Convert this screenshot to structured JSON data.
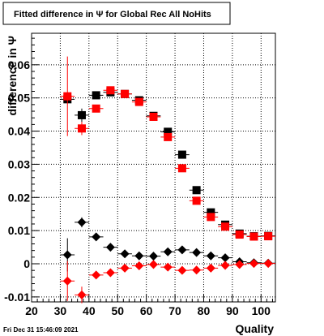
{
  "title_text": "Fitted difference in  Ψ  for Global Rec All NoHits",
  "timestamp": "Fri Dec 31 15:46:09 2021",
  "chart_data": {
    "type": "scatter",
    "title": "Fitted difference in  Ψ  for Global Rec All NoHits",
    "xlabel": "Quality",
    "ylabel": "difference in  Ψ",
    "xlim": [
      20,
      105
    ],
    "ylim": [
      -0.0115,
      0.0695
    ],
    "x_ticks": [
      20,
      30,
      40,
      50,
      60,
      70,
      80,
      90,
      100
    ],
    "y_ticks": [
      -0.01,
      0,
      0.01,
      0.02,
      0.03,
      0.04,
      0.05,
      0.06
    ],
    "y_tick_labels": [
      "-0.01",
      "0",
      "0.01",
      "0.02",
      "0.03",
      "0.04",
      "0.05",
      "0.06"
    ],
    "grid": true,
    "x_bin_half_width": 2.5,
    "series": [
      {
        "color": "#000000",
        "marker": "square",
        "points": [
          {
            "x": 32.5,
            "y": 0.0496,
            "err": 0.0
          },
          {
            "x": 37.5,
            "y": 0.0448,
            "err": 0.002
          },
          {
            "x": 42.5,
            "y": 0.0508,
            "err": 0.0006
          },
          {
            "x": 47.5,
            "y": 0.0517,
            "err": 0.0003
          },
          {
            "x": 52.5,
            "y": 0.0512,
            "err": 0.0002
          },
          {
            "x": 57.5,
            "y": 0.0493,
            "err": 0.0002
          },
          {
            "x": 62.5,
            "y": 0.0446,
            "err": 0.0002
          },
          {
            "x": 67.5,
            "y": 0.0398,
            "err": 0.0002
          },
          {
            "x": 72.5,
            "y": 0.0329,
            "err": 0.0002
          },
          {
            "x": 77.5,
            "y": 0.0222,
            "err": 0.0002
          },
          {
            "x": 82.5,
            "y": 0.0155,
            "err": 0.0002
          },
          {
            "x": 87.5,
            "y": 0.0118,
            "err": 0.0002
          },
          {
            "x": 92.5,
            "y": 0.0091,
            "err": 0.0002
          },
          {
            "x": 97.5,
            "y": 0.0083,
            "err": 0.0002
          },
          {
            "x": 102.5,
            "y": 0.0084,
            "err": 0.0002
          }
        ]
      },
      {
        "color": "#ff0000",
        "marker": "square",
        "points": [
          {
            "x": 32.5,
            "y": 0.0505,
            "err": 0.012
          },
          {
            "x": 37.5,
            "y": 0.0408,
            "err": 0.002
          },
          {
            "x": 42.5,
            "y": 0.0468,
            "err": 0.0008
          },
          {
            "x": 47.5,
            "y": 0.0523,
            "err": 0.0004
          },
          {
            "x": 52.5,
            "y": 0.0512,
            "err": 0.0003
          },
          {
            "x": 57.5,
            "y": 0.0488,
            "err": 0.0002
          },
          {
            "x": 62.5,
            "y": 0.0443,
            "err": 0.0002
          },
          {
            "x": 67.5,
            "y": 0.0382,
            "err": 0.0002
          },
          {
            "x": 72.5,
            "y": 0.0288,
            "err": 0.0002
          },
          {
            "x": 77.5,
            "y": 0.019,
            "err": 0.0002
          },
          {
            "x": 82.5,
            "y": 0.0141,
            "err": 0.0002
          },
          {
            "x": 87.5,
            "y": 0.0112,
            "err": 0.0002
          },
          {
            "x": 92.5,
            "y": 0.0088,
            "err": 0.0002
          },
          {
            "x": 97.5,
            "y": 0.0082,
            "err": 0.0002
          },
          {
            "x": 102.5,
            "y": 0.0083,
            "err": 0.0002
          }
        ]
      },
      {
        "color": "#000000",
        "marker": "diamond",
        "points": [
          {
            "x": 32.5,
            "y": 0.0027,
            "err": 0.005
          },
          {
            "x": 37.5,
            "y": 0.0125,
            "err": 0.0015
          },
          {
            "x": 42.5,
            "y": 0.0081,
            "err": 0.0006
          },
          {
            "x": 47.5,
            "y": 0.005,
            "err": 0.0004
          },
          {
            "x": 52.5,
            "y": 0.003,
            "err": 0.0002
          },
          {
            "x": 57.5,
            "y": 0.0024,
            "err": 0.0002
          },
          {
            "x": 62.5,
            "y": 0.0023,
            "err": 0.0002
          },
          {
            "x": 67.5,
            "y": 0.0036,
            "err": 0.0002
          },
          {
            "x": 72.5,
            "y": 0.0042,
            "err": 0.0002
          },
          {
            "x": 77.5,
            "y": 0.0034,
            "err": 0.0002
          },
          {
            "x": 82.5,
            "y": 0.0024,
            "err": 0.0002
          },
          {
            "x": 87.5,
            "y": 0.0018,
            "err": 0.0002
          },
          {
            "x": 92.5,
            "y": 0.0006,
            "err": 0.0002
          },
          {
            "x": 97.5,
            "y": 0.0003,
            "err": 0.0002
          },
          {
            "x": 102.5,
            "y": 0.0002,
            "err": 0.0002
          }
        ]
      },
      {
        "color": "#ff0000",
        "marker": "diamond",
        "points": [
          {
            "x": 32.5,
            "y": -0.0052,
            "err": 0.006
          },
          {
            "x": 37.5,
            "y": -0.0094,
            "err": 0.0025
          },
          {
            "x": 42.5,
            "y": -0.0034,
            "err": 0.0008
          },
          {
            "x": 47.5,
            "y": -0.0027,
            "err": 0.0004
          },
          {
            "x": 52.5,
            "y": -0.0013,
            "err": 0.0003
          },
          {
            "x": 57.5,
            "y": -0.0006,
            "err": 0.0002
          },
          {
            "x": 62.5,
            "y": -0.0002,
            "err": 0.0002
          },
          {
            "x": 67.5,
            "y": -0.001,
            "err": 0.0002
          },
          {
            "x": 72.5,
            "y": -0.002,
            "err": 0.0002
          },
          {
            "x": 77.5,
            "y": -0.0019,
            "err": 0.0002
          },
          {
            "x": 82.5,
            "y": -0.0013,
            "err": 0.0002
          },
          {
            "x": 87.5,
            "y": -0.0005,
            "err": 0.0002
          },
          {
            "x": 92.5,
            "y": -0.0002,
            "err": 0.0002
          },
          {
            "x": 97.5,
            "y": 0.0001,
            "err": 0.0002
          },
          {
            "x": 102.5,
            "y": 0.0001,
            "err": 0.0002
          }
        ]
      }
    ]
  }
}
